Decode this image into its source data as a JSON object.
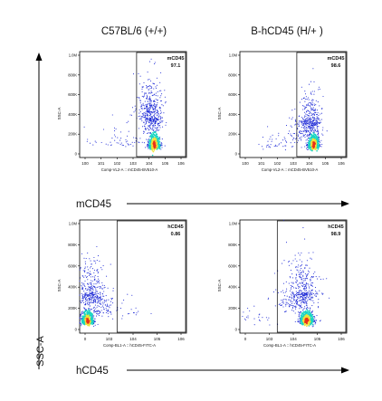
{
  "columns": [
    "C57BL/6 (+/+)",
    "B-hCD45 (H/+ )"
  ],
  "rows": [
    {
      "marker": "mCD45",
      "x_channel": "Comp-VL2-A :: mCD45-BV510-A"
    },
    {
      "marker": "hCD45",
      "x_channel": "Comp-BL1-A :: hCD45-FITC-A"
    }
  ],
  "y_axis_label": "SSC-A",
  "colors": {
    "low": "#1f2bd6",
    "mid": "#19d5c2",
    "high": "#f0e23a",
    "peak": "#e8301c",
    "axis": "#000000"
  },
  "chart_data": [
    {
      "type": "scatter",
      "panel": "top-left",
      "title": "C57BL/6 (+/+)",
      "xlabel": "Comp-VL2-A :: mCD45-BV510-A",
      "ylabel": "SSC-A",
      "x_ticks": [
        "10^0",
        "10^1",
        "10^2",
        "10^3",
        "10^4",
        "10^5",
        "10^6"
      ],
      "y_ticks": [
        "1.0M",
        "800K",
        "600K",
        "400K",
        "200K",
        "0"
      ],
      "xlim": [
        0,
        6
      ],
      "ylim": [
        0,
        1000000
      ],
      "gate": {
        "name": "mCD45",
        "value": "97.1",
        "x_from": 3.2
      },
      "clusters": [
        {
          "cx": 4.2,
          "cy": 120000,
          "sx": 0.18,
          "sy": 70000,
          "n": 520
        },
        {
          "cx": 4.05,
          "cy": 380000,
          "sx": 0.3,
          "sy": 200000,
          "n": 320
        },
        {
          "cx": 3.9,
          "cy": 500000,
          "sx": 0.35,
          "sy": 220000,
          "n": 140
        },
        {
          "cx": 2.3,
          "cy": 150000,
          "sx": 0.8,
          "sy": 90000,
          "n": 60
        }
      ]
    },
    {
      "type": "scatter",
      "panel": "top-right",
      "title": "B-hCD45 (H/+ )",
      "xlabel": "Comp-VL2-A :: mCD45-BV510-A",
      "ylabel": "SSC-A",
      "x_ticks": [
        "10^0",
        "10^1",
        "10^2",
        "10^3",
        "10^4",
        "10^5",
        "10^6"
      ],
      "y_ticks": [
        "1.0M",
        "800K",
        "600K",
        "400K",
        "200K",
        "0"
      ],
      "xlim": [
        0,
        6
      ],
      "ylim": [
        0,
        1000000
      ],
      "gate": {
        "name": "mCD45",
        "value": "98.6",
        "x_from": 3.2
      },
      "clusters": [
        {
          "cx": 4.15,
          "cy": 120000,
          "sx": 0.17,
          "sy": 65000,
          "n": 480
        },
        {
          "cx": 4.0,
          "cy": 350000,
          "sx": 0.28,
          "sy": 190000,
          "n": 300
        },
        {
          "cx": 3.6,
          "cy": 250000,
          "sx": 0.5,
          "sy": 140000,
          "n": 110
        },
        {
          "cx": 2.3,
          "cy": 120000,
          "sx": 0.7,
          "sy": 80000,
          "n": 50
        }
      ]
    },
    {
      "type": "scatter",
      "panel": "bottom-left",
      "title": "",
      "xlabel": "Comp-BL1-A :: hCD45-FITC-A",
      "ylabel": "SSC-A",
      "x_ticks": [
        "0",
        "10^3",
        "10^4",
        "10^5",
        "10^6"
      ],
      "y_ticks": [
        "1.0M",
        "800K",
        "600K",
        "400K",
        "200K",
        "0"
      ],
      "xlim": [
        0,
        4
      ],
      "ylim": [
        0,
        1000000
      ],
      "gate": {
        "name": "hCD45",
        "value": "0.86",
        "x_from": 1.4
      },
      "clusters": [
        {
          "cx": 0.3,
          "cy": 110000,
          "sx": 0.12,
          "sy": 55000,
          "n": 520
        },
        {
          "cx": 0.4,
          "cy": 350000,
          "sx": 0.25,
          "sy": 190000,
          "n": 330
        },
        {
          "cx": 0.8,
          "cy": 200000,
          "sx": 0.35,
          "sy": 110000,
          "n": 120
        },
        {
          "cx": 1.9,
          "cy": 180000,
          "sx": 0.5,
          "sy": 90000,
          "n": 18
        }
      ]
    },
    {
      "type": "scatter",
      "panel": "bottom-right",
      "title": "",
      "xlabel": "Comp-BL1-A :: hCD45-FITC-A",
      "ylabel": "SSC-A",
      "x_ticks": [
        "0",
        "10^3",
        "10^4",
        "10^5",
        "10^6"
      ],
      "y_ticks": [
        "1.0M",
        "800K",
        "600K",
        "400K",
        "200K",
        "0"
      ],
      "xlim": [
        0,
        4
      ],
      "ylim": [
        0,
        1000000
      ],
      "gate": {
        "name": "hCD45",
        "value": "98.9",
        "x_from": 1.4
      },
      "clusters": [
        {
          "cx": 2.5,
          "cy": 110000,
          "sx": 0.14,
          "sy": 55000,
          "n": 520
        },
        {
          "cx": 2.35,
          "cy": 360000,
          "sx": 0.3,
          "sy": 200000,
          "n": 330
        },
        {
          "cx": 2.0,
          "cy": 260000,
          "sx": 0.4,
          "sy": 140000,
          "n": 130
        },
        {
          "cx": 0.6,
          "cy": 150000,
          "sx": 0.35,
          "sy": 90000,
          "n": 25
        }
      ]
    }
  ]
}
